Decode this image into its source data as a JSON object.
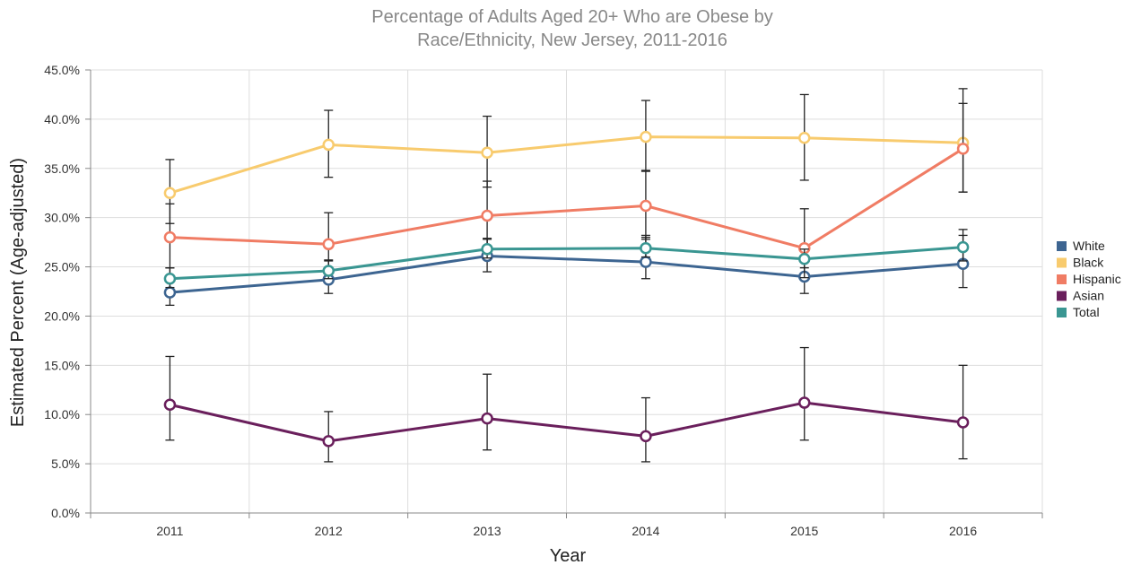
{
  "chart_data": {
    "type": "line",
    "title_lines": [
      "Percentage of Adults Aged 20+ Who are Obese by",
      "Race/Ethnicity, New Jersey, 2011-2016"
    ],
    "xlabel": "Year",
    "ylabel": "Estimated Percent (Age-adjusted)",
    "categories": [
      "2011",
      "2012",
      "2013",
      "2014",
      "2015",
      "2016"
    ],
    "ylim": [
      0,
      45
    ],
    "yticks": [
      0,
      5,
      10,
      15,
      20,
      25,
      30,
      35,
      40,
      45
    ],
    "ytick_labels": [
      "0.0%",
      "5.0%",
      "10.0%",
      "15.0%",
      "20.0%",
      "25.0%",
      "30.0%",
      "35.0%",
      "40.0%",
      "45.0%"
    ],
    "grid": true,
    "legend": "right",
    "series": [
      {
        "name": "White",
        "color": "#3d6591",
        "values": [
          22.4,
          23.7,
          26.1,
          25.5,
          24.0,
          25.3
        ],
        "lower": [
          21.1,
          22.3,
          24.5,
          23.8,
          22.3,
          22.9
        ],
        "upper": [
          24.9,
          25.7,
          27.9,
          28.2,
          26.1,
          28.2
        ]
      },
      {
        "name": "Black",
        "color": "#f8cb6e",
        "values": [
          32.5,
          37.4,
          36.6,
          38.2,
          38.1,
          37.6
        ],
        "lower": [
          29.4,
          34.1,
          33.1,
          34.7,
          33.8,
          32.6
        ],
        "upper": [
          35.9,
          40.9,
          40.3,
          41.9,
          42.5,
          43.1
        ]
      },
      {
        "name": "Hispanic",
        "color": "#f07c64",
        "values": [
          28.0,
          27.3,
          30.2,
          31.2,
          26.9,
          37.0
        ],
        "lower": [
          24.9,
          24.5,
          26.9,
          27.8,
          23.9,
          32.6
        ],
        "upper": [
          31.4,
          30.5,
          33.7,
          34.8,
          30.9,
          41.6
        ]
      },
      {
        "name": "Asian",
        "color": "#6a1f5c",
        "values": [
          11.0,
          7.3,
          9.6,
          7.8,
          11.2,
          9.2
        ],
        "lower": [
          7.4,
          5.2,
          6.4,
          5.2,
          7.4,
          5.5
        ],
        "upper": [
          15.9,
          10.3,
          14.1,
          11.7,
          16.8,
          15.0
        ]
      },
      {
        "name": "Total",
        "color": "#3a9692",
        "values": [
          23.8,
          24.6,
          26.8,
          26.9,
          25.8,
          27.0
        ],
        "lower": [
          22.9,
          23.8,
          25.9,
          26.0,
          24.9,
          25.6
        ],
        "upper": [
          24.9,
          25.6,
          27.8,
          28.0,
          26.8,
          28.8
        ]
      }
    ]
  }
}
